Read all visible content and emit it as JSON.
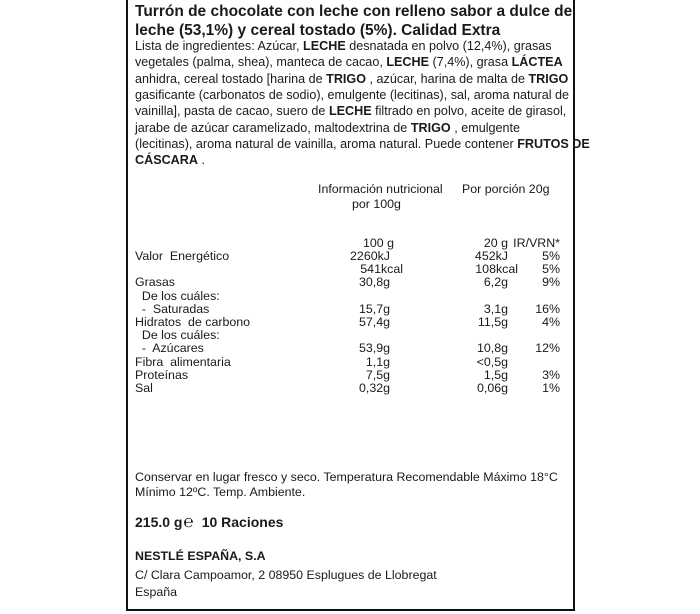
{
  "title_lines": [
    "Turrón de chocolate con leche con relleno sabor a dulce de",
    "leche (53,1%) y cereal tostado (5%). Calidad Extra"
  ],
  "ingredients_lines": [
    [
      {
        "t": "Lista de ingredientes: Azúcar, "
      },
      {
        "t": "LECHE",
        "b": true
      },
      {
        "t": " desnatada en polvo (12,4%), grasas"
      }
    ],
    [
      {
        "t": "vegetales (palma, shea), manteca de cacao, "
      },
      {
        "t": "LECHE",
        "b": true
      },
      {
        "t": " (7,4%), grasa "
      },
      {
        "t": "LÁCTEA",
        "b": true
      }
    ],
    [
      {
        "t": "anhidra, cereal tostado [harina de "
      },
      {
        "t": "TRIGO",
        "b": true
      },
      {
        "t": " , azúcar, harina de malta de "
      },
      {
        "t": "TRIGO",
        "b": true
      },
      {
        "t": " ,"
      }
    ],
    [
      {
        "t": "gasificante (carbonatos de sodio), emulgente (lecitinas), sal, aroma natural de"
      }
    ],
    [
      {
        "t": "vainilla], pasta de cacao, suero de "
      },
      {
        "t": "LECHE",
        "b": true
      },
      {
        "t": " filtrado en polvo, aceite de girasol,"
      }
    ],
    [
      {
        "t": "jarabe de azúcar caramelizado, maltodextrina de "
      },
      {
        "t": "TRIGO",
        "b": true
      },
      {
        "t": " , emulgente"
      }
    ],
    [
      {
        "t": "(lecitinas), aroma natural de vainilla, aroma natural. Puede contener "
      },
      {
        "t": "FRUTOS DE",
        "b": true
      }
    ],
    [
      {
        "t": "CÁSCARA",
        "b": true
      },
      {
        "t": " ."
      }
    ]
  ],
  "nutrition": {
    "header_per100_line1": "Información nutricional",
    "header_per100_line2": "por 100g",
    "header_portion": "Por porción 20g",
    "col_100": "100 g",
    "col_20": "20 g",
    "col_ir": "IR/VRN*",
    "rows": [
      {
        "label": "Valor  Energético",
        "v100": "2260kJ",
        "v20": "452kJ",
        "ir": "5%"
      },
      {
        "label": "",
        "v100": "541kcal",
        "v20": "108kcal",
        "ir": "5%",
        "kcal": true
      },
      {
        "label": "Grasas",
        "v100": "30,8g",
        "v20": "6,2g",
        "ir": "9%"
      },
      {
        "label": "  De los cuáles:",
        "v100": "",
        "v20": "",
        "ir": ""
      },
      {
        "label": "  -  Saturadas",
        "v100": "15,7g",
        "v20": "3,1g",
        "ir": "16%"
      },
      {
        "label": "Hidratos  de carbono",
        "v100": "57,4g",
        "v20": "11,5g",
        "ir": "4%"
      },
      {
        "label": "  De los cuáles:",
        "v100": "",
        "v20": "",
        "ir": ""
      },
      {
        "label": "  -  Azúcares",
        "v100": "53,9g",
        "v20": "10,8g",
        "ir": "12%"
      },
      {
        "label": "Fibra  alimentaria",
        "v100": "1,1g",
        "v20": "<0,5g",
        "ir": ""
      },
      {
        "label": "Proteínas",
        "v100": "7,5g",
        "v20": "1,5g",
        "ir": "3%"
      },
      {
        "label": "Sal",
        "v100": "0,32g",
        "v20": "0,06g",
        "ir": "1%"
      }
    ]
  },
  "storage_line1": "Conservar en lugar fresco y seco. Temperatura Recomendable Máximo 18°C",
  "storage_line2": "Mínimo 12ºC. Temp. Ambiente.",
  "net_weight": "215.0 g",
  "estimated_sign": "℮",
  "servings": "10 Raciones",
  "company": "NESTLÉ ESPAÑA, S.A",
  "address": "C/ Clara Campoamor, 2 08950 Esplugues de Llobregat",
  "country": "España"
}
